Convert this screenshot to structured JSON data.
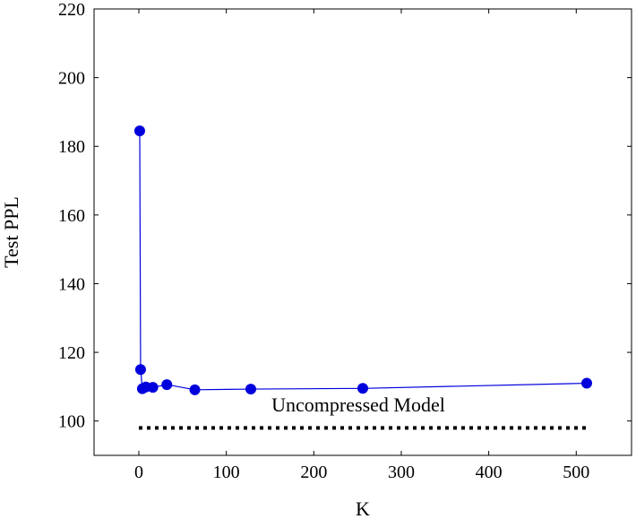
{
  "chart_data": {
    "type": "line",
    "title": "",
    "xlabel": "K",
    "ylabel": "Test PPL",
    "xlim": [
      -51.2,
      563.2
    ],
    "ylim": [
      90,
      220
    ],
    "xticks": [
      0,
      100,
      200,
      300,
      400,
      500
    ],
    "yticks": [
      100,
      120,
      140,
      160,
      180,
      200,
      220
    ],
    "grid": false,
    "series": [
      {
        "x": [
          1,
          2,
          4,
          8,
          16,
          32,
          64,
          128,
          256,
          512
        ],
        "y": [
          184.5,
          115,
          109.4,
          109.9,
          109.8,
          110.6,
          109.1,
          109.3,
          109.5,
          111.0
        ],
        "color": "#0000dd",
        "marker": "circle"
      }
    ],
    "reference_line": {
      "label": "Uncompressed Model",
      "y": 98,
      "x": [
        0,
        512
      ],
      "style": "dotted",
      "color": "#000000"
    }
  }
}
